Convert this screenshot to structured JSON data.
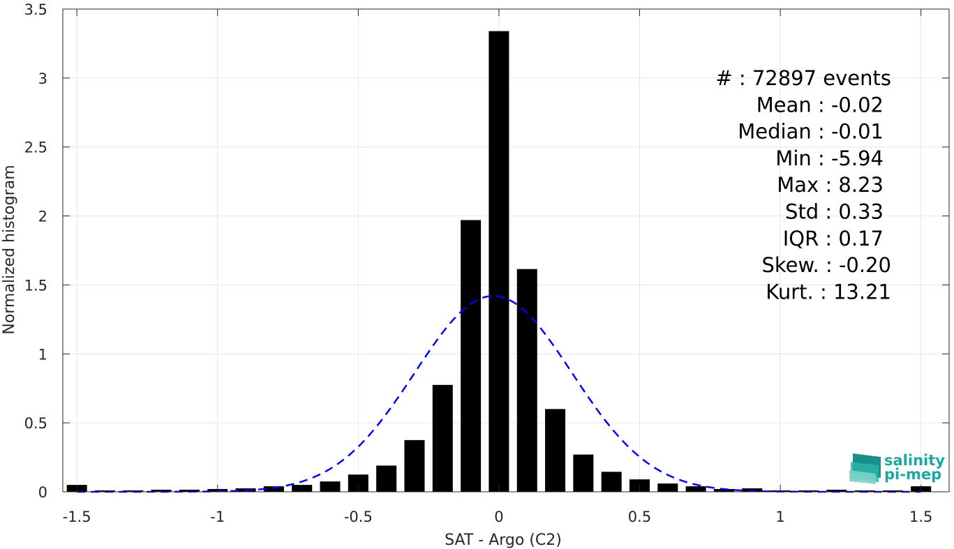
{
  "chart_data": {
    "type": "bar",
    "xlabel": "SAT - Argo (C2)",
    "ylabel": "Normalized histogram",
    "xlim": [
      -1.55,
      1.6
    ],
    "ylim": [
      0,
      3.5
    ],
    "xticks": [
      -1.5,
      -1,
      -0.5,
      0,
      0.5,
      1,
      1.5
    ],
    "xtick_labels": [
      "-1.5",
      "-1",
      "-0.5",
      "0",
      "0.5",
      "1",
      "1.5"
    ],
    "yticks": [
      0,
      0.5,
      1,
      1.5,
      2,
      2.5,
      3,
      3.5
    ],
    "ytick_labels": [
      "0",
      "0.5",
      "1",
      "1.5",
      "2",
      "2.5",
      "3",
      "3.5"
    ],
    "grid": true,
    "bin_width": 0.1,
    "bar_color": "#000000",
    "x": [
      -1.5,
      -1.4,
      -1.3,
      -1.2,
      -1.1,
      -1.0,
      -0.9,
      -0.8,
      -0.7,
      -0.6,
      -0.5,
      -0.4,
      -0.3,
      -0.2,
      -0.1,
      0.0,
      0.1,
      0.2,
      0.3,
      0.4,
      0.5,
      0.6,
      0.7,
      0.8,
      0.9,
      1.0,
      1.1,
      1.2,
      1.3,
      1.4,
      1.5
    ],
    "values": [
      0.05,
      0.01,
      0.01,
      0.015,
      0.015,
      0.02,
      0.025,
      0.04,
      0.05,
      0.075,
      0.125,
      0.19,
      0.375,
      0.775,
      1.97,
      3.34,
      1.615,
      0.6,
      0.27,
      0.145,
      0.09,
      0.06,
      0.04,
      0.02,
      0.025,
      0.01,
      0.01,
      0.015,
      0.01,
      0.01,
      0.04
    ],
    "fit_curve": {
      "type": "gaussian",
      "color": "#0000ff",
      "style": "dashed",
      "mean": -0.02,
      "std": 0.28,
      "peak": 1.42
    },
    "annotations": [
      "#  : 72897 events",
      "Mean : -0.02",
      "Median : -0.01",
      "Min : -5.94",
      "Max : 8.23",
      "Std : 0.33",
      "IQR : 0.17",
      "Skew. : -0.20",
      "Kurt. : 13.21"
    ]
  },
  "logo": {
    "line1": "salinity",
    "line2": "pi-mep",
    "color": "#1ea7a0"
  }
}
